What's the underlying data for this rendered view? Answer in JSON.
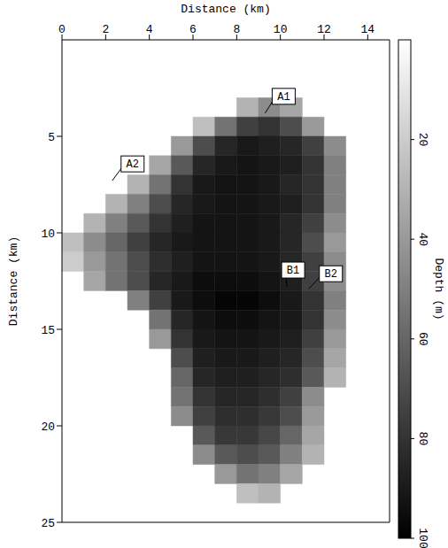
{
  "chart_data": {
    "type": "heatmap",
    "x_label": "Distance (km)",
    "y_label": "Distance (km)",
    "xlim": [
      0,
      15
    ],
    "xticks": [
      0,
      2,
      4,
      6,
      8,
      10,
      12,
      14
    ],
    "ylim": [
      0,
      25
    ],
    "yticks": [
      5,
      10,
      15,
      20,
      25
    ],
    "cell_size": 1,
    "cells": [
      {
        "y": 3,
        "x": 8,
        "values": [
          30,
          45,
          35
        ]
      },
      {
        "y": 4,
        "x": 6,
        "values": [
          25,
          55,
          75,
          80,
          70,
          40
        ]
      },
      {
        "y": 5,
        "x": 5,
        "values": [
          40,
          70,
          85,
          90,
          88,
          85,
          75,
          45
        ]
      },
      {
        "y": 6,
        "x": 4,
        "values": [
          35,
          65,
          85,
          90,
          92,
          90,
          88,
          80,
          50
        ]
      },
      {
        "y": 7,
        "x": 3,
        "values": [
          30,
          55,
          80,
          90,
          92,
          92,
          90,
          85,
          80,
          50
        ]
      },
      {
        "y": 8,
        "x": 2,
        "values": [
          30,
          50,
          70,
          85,
          90,
          92,
          92,
          90,
          88,
          80,
          50
        ]
      },
      {
        "y": 9,
        "x": 1,
        "values": [
          30,
          50,
          65,
          80,
          88,
          92,
          92,
          92,
          90,
          85,
          75,
          45
        ]
      },
      {
        "y": 10,
        "x": 0,
        "values": [
          25,
          45,
          60,
          75,
          85,
          90,
          92,
          92,
          92,
          90,
          85,
          70,
          40
        ]
      },
      {
        "y": 11,
        "x": 0,
        "values": [
          20,
          40,
          55,
          70,
          82,
          88,
          92,
          92,
          92,
          90,
          85,
          75,
          45
        ]
      },
      {
        "y": 12,
        "x": 1,
        "values": [
          35,
          55,
          70,
          85,
          90,
          95,
          95,
          95,
          92,
          88,
          75,
          45
        ]
      },
      {
        "y": 13,
        "x": 3,
        "values": [
          50,
          75,
          90,
          95,
          98,
          98,
          95,
          90,
          80,
          50
        ]
      },
      {
        "y": 14,
        "x": 4,
        "values": [
          55,
          85,
          92,
          95,
          95,
          92,
          90,
          80,
          45
        ]
      },
      {
        "y": 15,
        "x": 4,
        "values": [
          40,
          80,
          90,
          92,
          92,
          90,
          88,
          75,
          40
        ]
      },
      {
        "y": 16,
        "x": 5,
        "values": [
          70,
          88,
          90,
          90,
          88,
          85,
          70,
          35
        ]
      },
      {
        "y": 17,
        "x": 5,
        "values": [
          60,
          85,
          88,
          88,
          85,
          82,
          65,
          30
        ]
      },
      {
        "y": 18,
        "x": 5,
        "values": [
          55,
          80,
          85,
          85,
          82,
          75,
          45
        ]
      },
      {
        "y": 19,
        "x": 5,
        "values": [
          45,
          75,
          82,
          82,
          78,
          70,
          40
        ]
      },
      {
        "y": 20,
        "x": 6,
        "values": [
          65,
          78,
          78,
          72,
          60,
          35
        ]
      },
      {
        "y": 21,
        "x": 6,
        "values": [
          45,
          65,
          70,
          65,
          50,
          30
        ]
      },
      {
        "y": 22,
        "x": 7,
        "values": [
          40,
          55,
          50,
          35
        ]
      },
      {
        "y": 23,
        "x": 8,
        "values": [
          25,
          30
        ]
      }
    ],
    "colorbar": {
      "label": "Depth (m)",
      "range": [
        0,
        100
      ],
      "ticks": [
        20,
        40,
        60,
        80,
        100
      ]
    },
    "annotations": [
      {
        "text": "A1",
        "x": 9.3,
        "y": 3.8
      },
      {
        "text": "A2",
        "x": 2.3,
        "y": 7.3
      },
      {
        "text": "B1",
        "x": 10.3,
        "y": 12.8
      },
      {
        "text": "B2",
        "x": 11.3,
        "y": 12.9
      }
    ]
  }
}
